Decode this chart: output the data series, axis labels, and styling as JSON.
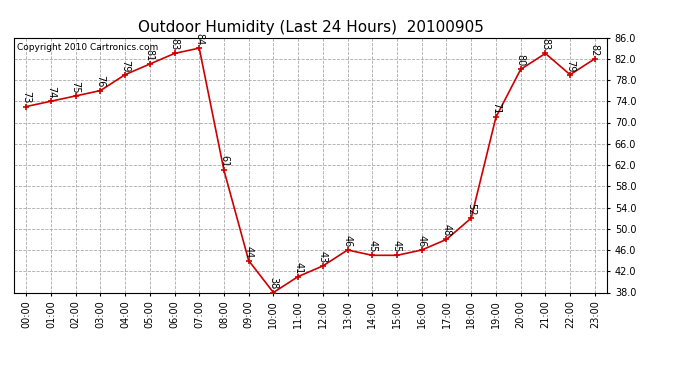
{
  "title": "Outdoor Humidity (Last 24 Hours)  20100905",
  "copyright": "Copyright 2010 Cartronics.com",
  "x_labels": [
    "00:00",
    "01:00",
    "02:00",
    "03:00",
    "04:00",
    "05:00",
    "06:00",
    "07:00",
    "08:00",
    "09:00",
    "10:00",
    "11:00",
    "12:00",
    "13:00",
    "14:00",
    "15:00",
    "16:00",
    "17:00",
    "18:00",
    "19:00",
    "20:00",
    "21:00",
    "22:00",
    "23:00"
  ],
  "hours": [
    0,
    1,
    2,
    3,
    4,
    5,
    6,
    7,
    8,
    9,
    10,
    11,
    12,
    13,
    14,
    15,
    16,
    17,
    18,
    19,
    20,
    21,
    22,
    23
  ],
  "values": [
    73,
    74,
    75,
    76,
    79,
    81,
    83,
    84,
    61,
    44,
    38,
    41,
    43,
    46,
    45,
    45,
    46,
    48,
    52,
    71,
    80,
    83,
    79,
    82
  ],
  "line_color": "#cc0000",
  "marker_color": "#cc0000",
  "bg_color": "#ffffff",
  "plot_bg": "#ffffff",
  "grid_color": "#aaaaaa",
  "ylim_min": 38.0,
  "ylim_max": 86.0,
  "ytick_step": 4.0,
  "title_fontsize": 11,
  "label_fontsize": 7,
  "tick_fontsize": 7,
  "copyright_fontsize": 6.5
}
